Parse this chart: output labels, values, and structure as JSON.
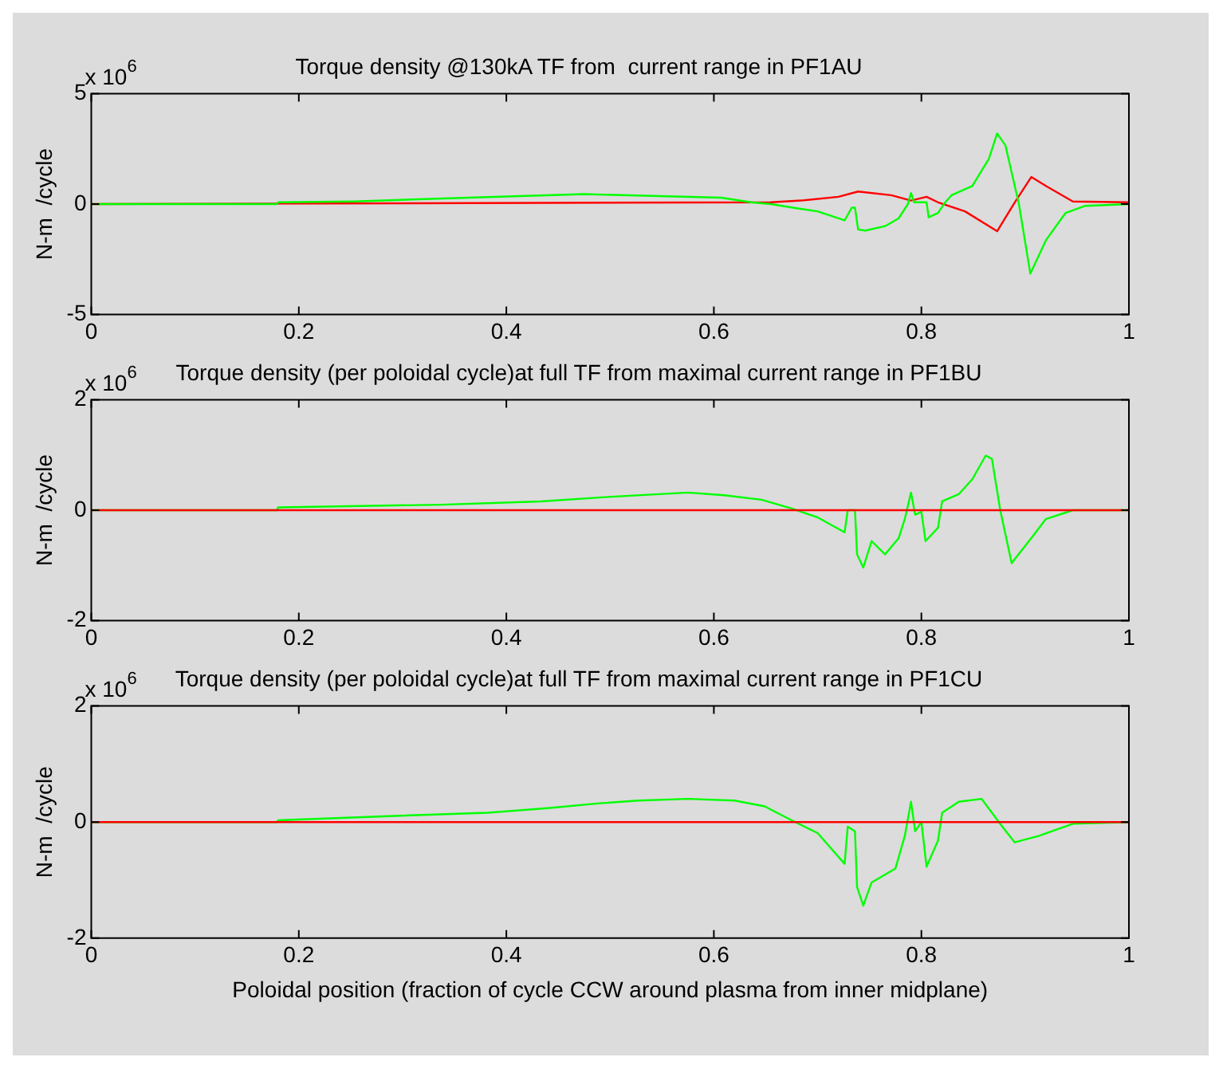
{
  "chart_data": [
    {
      "type": "line",
      "title": "Torque density @130kA TF from  current range in PF1AU",
      "ylabel": "N-m  /cycle",
      "annotations": [
        "x 10$^{6}$"
      ],
      "xlim": [
        0,
        1
      ],
      "xticks": [
        0,
        0.2,
        0.4,
        0.6,
        0.8,
        1
      ],
      "ylim": [
        -5,
        5
      ],
      "yticks": [
        -5,
        0,
        5
      ],
      "series": [
        {
          "color": "#00ff00",
          "x": [
            0,
            0.179,
            0.18,
            0.253,
            0.363,
            0.475,
            0.607,
            0.636,
            0.655,
            0.681,
            0.7,
            0.726,
            0.733,
            0.736,
            0.739,
            0.746,
            0.765,
            0.778,
            0.787,
            0.79,
            0.793,
            0.805,
            0.807,
            0.816,
            0.823,
            0.829,
            0.849,
            0.865,
            0.873,
            0.881,
            0.894,
            0.905,
            0.92,
            0.939,
            0.958,
            1
          ],
          "values": [
            0,
            0,
            0.08,
            0.12,
            0.29,
            0.45,
            0.29,
            0.08,
            0,
            -0.2,
            -0.33,
            -0.74,
            -0.16,
            -0.16,
            -1.15,
            -1.2,
            -1,
            -0.65,
            0,
            0.5,
            0.08,
            0.08,
            -0.6,
            -0.4,
            0.08,
            0.4,
            0.82,
            2.05,
            3.2,
            2.66,
            0,
            -3.15,
            -1.64,
            -0.4,
            -0.08,
            0
          ]
        },
        {
          "color": "#ff0000",
          "x": [
            0,
            0.655,
            0.684,
            0.72,
            0.739,
            0.771,
            0.79,
            0.805,
            0.816,
            0.842,
            0.873,
            0.89,
            0.906,
            0.92,
            0.946,
            1
          ],
          "values": [
            0,
            0.08,
            0.16,
            0.33,
            0.57,
            0.4,
            0.16,
            0.33,
            0.08,
            -0.33,
            -1.23,
            0.08,
            1.23,
            0.82,
            0.12,
            0.08
          ]
        }
      ]
    },
    {
      "type": "line",
      "title": "Torque density (per poloidal cycle)at full TF from maximal current range in PF1BU",
      "ylabel": "N-m  /cycle",
      "annotations": [
        "x 10$^{6}$"
      ],
      "xlim": [
        0,
        1
      ],
      "xticks": [
        0,
        0.2,
        0.4,
        0.6,
        0.8,
        1
      ],
      "ylim": [
        -2,
        2
      ],
      "yticks": [
        -2,
        0,
        2
      ],
      "series": [
        {
          "color": "#ff0000",
          "x": [
            0,
            1
          ],
          "values": [
            0,
            0
          ]
        },
        {
          "color": "#00ff00",
          "x": [
            0,
            0.179,
            0.18,
            0.337,
            0.433,
            0.498,
            0.575,
            0.61,
            0.646,
            0.675,
            0.7,
            0.726,
            0.729,
            0.736,
            0.738,
            0.744,
            0.752,
            0.765,
            0.778,
            0.784,
            0.79,
            0.794,
            0.8,
            0.804,
            0.816,
            0.82,
            0.836,
            0.849,
            0.862,
            0.868,
            0.876,
            0.887,
            0.907,
            0.92,
            0.946,
            1
          ],
          "values": [
            0,
            0,
            0.05,
            0.1,
            0.16,
            0.24,
            0.32,
            0.27,
            0.19,
            0.03,
            -0.13,
            -0.4,
            0,
            0,
            -0.8,
            -1.04,
            -0.56,
            -0.8,
            -0.51,
            -0.16,
            0.32,
            -0.08,
            -0.03,
            -0.56,
            -0.32,
            0.16,
            0.29,
            0.56,
            0.99,
            0.93,
            0,
            -0.96,
            -0.48,
            -0.16,
            0,
            0
          ]
        }
      ]
    },
    {
      "type": "line",
      "title": "Torque density (per poloidal cycle)at full TF from maximal current range in PF1CU",
      "xlabel": "Poloidal position (fraction of cycle CCW around plasma from inner midplane)",
      "ylabel": "N-m  /cycle",
      "annotations": [
        "x 10$^{6}$"
      ],
      "xlim": [
        0,
        1
      ],
      "xticks": [
        0,
        0.2,
        0.4,
        0.6,
        0.8,
        1
      ],
      "ylim": [
        -2,
        2
      ],
      "yticks": [
        -2,
        0,
        2
      ],
      "series": [
        {
          "color": "#ff0000",
          "x": [
            0,
            1
          ],
          "values": [
            0,
            0
          ]
        },
        {
          "color": "#00ff00",
          "x": [
            0,
            0.179,
            0.18,
            0.298,
            0.382,
            0.44,
            0.488,
            0.527,
            0.575,
            0.62,
            0.649,
            0.675,
            0.7,
            0.726,
            0.729,
            0.736,
            0.738,
            0.744,
            0.752,
            0.775,
            0.784,
            0.79,
            0.794,
            0.8,
            0.805,
            0.816,
            0.82,
            0.836,
            0.858,
            0.878,
            0.89,
            0.913,
            0.946,
            1
          ],
          "values": [
            0,
            0,
            0.03,
            0.11,
            0.16,
            0.24,
            0.32,
            0.37,
            0.4,
            0.37,
            0.27,
            0.03,
            -0.19,
            -0.72,
            -0.08,
            -0.16,
            -1.12,
            -1.44,
            -1.04,
            -0.8,
            -0.24,
            0.35,
            -0.16,
            0,
            -0.77,
            -0.32,
            0.16,
            0.35,
            0.4,
            -0.08,
            -0.35,
            -0.24,
            -0.03,
            0
          ]
        }
      ]
    }
  ]
}
